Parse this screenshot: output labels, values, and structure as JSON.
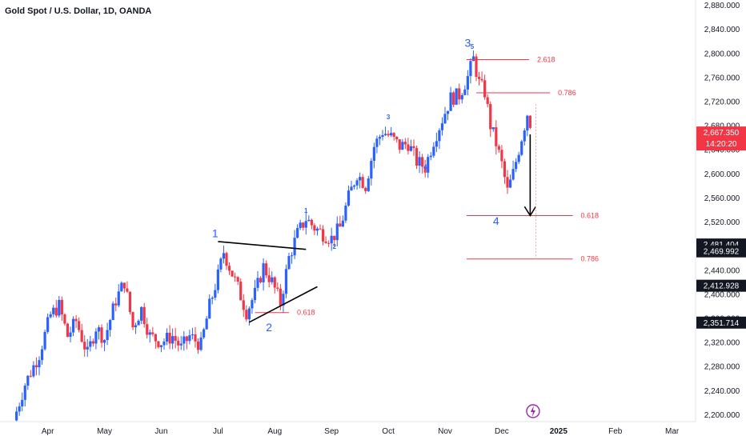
{
  "header": {
    "symbol_title": "Gold Spot / U.S. Dollar, 1D, OANDA"
  },
  "colors": {
    "up": "#2962ff",
    "down": "#f23645",
    "fib": "#f23645",
    "wave": "#2962ff",
    "price_badge": "#f23645",
    "level_badge": "#131722"
  },
  "chart_data": {
    "type": "candlestick",
    "title": "Gold Spot / U.S. Dollar, 1D, OANDA",
    "x_ticks": [
      "Apr",
      "May",
      "Jun",
      "Jul",
      "Aug",
      "Sep",
      "Oct",
      "Nov",
      "Dec",
      "2025",
      "Feb",
      "Mar"
    ],
    "y_ticks": [
      "2,200.000",
      "2,240.000",
      "2,280.000",
      "2,320.000",
      "2,360.000",
      "2,400.000",
      "2,440.000",
      "2,480.000",
      "2,520.000",
      "2,560.000",
      "2,600.000",
      "2,640.000",
      "2,680.000",
      "2,720.000",
      "2,760.000",
      "2,800.000",
      "2,840.000",
      "2,880.000"
    ],
    "ylim": [
      2192,
      2888
    ],
    "last_price": {
      "value": "2,667.350",
      "countdown": "14:20:20"
    },
    "price_levels": [
      "2,481.404",
      "2,469.992",
      "2,412.928",
      "2,351.714"
    ],
    "wave_labels": [
      {
        "text": "1",
        "month": 6.95,
        "price": 2494,
        "size": "large"
      },
      {
        "text": "2",
        "month": 7.9,
        "price": 2338,
        "size": "large"
      },
      {
        "text": "1",
        "month": 8.55,
        "price": 2535,
        "size": "small"
      },
      {
        "text": "2",
        "month": 9.05,
        "price": 2475,
        "size": "small"
      },
      {
        "text": "3",
        "month": 10.0,
        "price": 2690,
        "size": "small"
      },
      {
        "text": "4",
        "month": 10.65,
        "price": 2607,
        "size": "small"
      },
      {
        "text": "3",
        "month": 11.4,
        "price": 2810,
        "size": "large"
      },
      {
        "text": "5",
        "month": 11.48,
        "price": 2807,
        "size": "small"
      },
      {
        "text": "4",
        "month": 11.9,
        "price": 2515,
        "size": "large"
      }
    ],
    "fib_levels": [
      {
        "label": "2.618",
        "price": 2789,
        "start": 11.38,
        "end": 12.48
      },
      {
        "label": "0.786",
        "price": 2734,
        "start": 11.55,
        "end": 12.85
      },
      {
        "label": "0.618",
        "price": 2530,
        "start": 11.38,
        "end": 13.25
      },
      {
        "label": "0.786",
        "price": 2458,
        "start": 11.38,
        "end": 13.25
      },
      {
        "label": "0.618",
        "price": 2369,
        "start": 7.65,
        "end": 8.25
      }
    ],
    "candles": []
  }
}
